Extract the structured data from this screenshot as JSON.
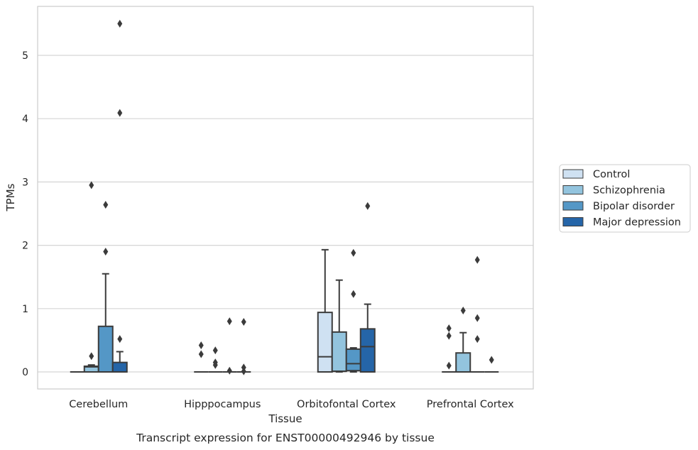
{
  "chart_data": {
    "type": "box",
    "caption": "Transcript expression for ENST00000492946 by tissue",
    "xlabel": "Tissue",
    "ylabel": "TPMs",
    "ylim": [
      -0.27,
      5.8
    ],
    "yticks": [
      0,
      1,
      2,
      3,
      4,
      5
    ],
    "grid": true,
    "legend_position": "right",
    "categories": [
      "Cerebellum",
      "Hipppocampus",
      "Orbitofontal Cortex",
      "Prefrontal Cortex"
    ],
    "series": [
      {
        "name": "Control",
        "color": "#cfe1f2",
        "boxes": [
          {
            "q1": 0,
            "median": 0,
            "q3": 0,
            "whisker_low": 0,
            "whisker_high": 0,
            "outliers": []
          },
          {
            "q1": 0,
            "median": 0,
            "q3": 0,
            "whisker_low": 0,
            "whisker_high": 0,
            "outliers": [
              0.42,
              0.28
            ]
          },
          {
            "q1": 0,
            "median": 0.24,
            "q3": 0.94,
            "whisker_low": 0,
            "whisker_high": 1.93,
            "outliers": []
          },
          {
            "q1": 0,
            "median": 0,
            "q3": 0,
            "whisker_low": 0,
            "whisker_high": 0,
            "outliers": [
              0.69,
              0.57,
              0.1
            ]
          }
        ]
      },
      {
        "name": "Schizophrenia",
        "color": "#93c4de",
        "boxes": [
          {
            "q1": 0,
            "median": 0.08,
            "q3": 0.09,
            "whisker_low": 0,
            "whisker_high": 0.11,
            "outliers": [
              2.95,
              0.25
            ]
          },
          {
            "q1": 0,
            "median": 0,
            "q3": 0,
            "whisker_low": 0,
            "whisker_high": 0,
            "outliers": [
              0.34,
              0.15,
              0.11
            ]
          },
          {
            "q1": 0.01,
            "median": 0.01,
            "q3": 0.63,
            "whisker_low": 0,
            "whisker_high": 1.45,
            "outliers": []
          },
          {
            "q1": 0,
            "median": 0,
            "q3": 0.3,
            "whisker_low": 0,
            "whisker_high": 0.62,
            "outliers": [
              0.97
            ]
          }
        ]
      },
      {
        "name": "Bipolar disorder",
        "color": "#5497c6",
        "boxes": [
          {
            "q1": 0,
            "median": 0,
            "q3": 0.72,
            "whisker_low": 0,
            "whisker_high": 1.55,
            "outliers": [
              2.64,
              1.9
            ]
          },
          {
            "q1": 0,
            "median": 0,
            "q3": 0,
            "whisker_low": 0,
            "whisker_high": 0,
            "outliers": [
              0.8,
              0.02
            ]
          },
          {
            "q1": 0.02,
            "median": 0.13,
            "q3": 0.36,
            "whisker_low": 0,
            "whisker_high": 0.38,
            "outliers": [
              1.88,
              1.23
            ]
          },
          {
            "q1": 0,
            "median": 0,
            "q3": 0,
            "whisker_low": 0,
            "whisker_high": 0,
            "outliers": [
              1.77,
              0.85,
              0.52
            ]
          }
        ]
      },
      {
        "name": "Major depression",
        "color": "#2565a8",
        "boxes": [
          {
            "q1": 0,
            "median": 0,
            "q3": 0.15,
            "whisker_low": 0,
            "whisker_high": 0.32,
            "outliers": [
              5.5,
              4.09,
              0.52
            ]
          },
          {
            "q1": 0,
            "median": 0,
            "q3": 0,
            "whisker_low": 0,
            "whisker_high": 0,
            "outliers": [
              0.79,
              0.07,
              0.01
            ]
          },
          {
            "q1": 0,
            "median": 0.4,
            "q3": 0.68,
            "whisker_low": 0,
            "whisker_high": 1.07,
            "outliers": [
              2.62
            ]
          },
          {
            "q1": 0,
            "median": 0,
            "q3": 0,
            "whisker_low": 0,
            "whisker_high": 0,
            "outliers": [
              0.19
            ]
          }
        ]
      }
    ]
  }
}
